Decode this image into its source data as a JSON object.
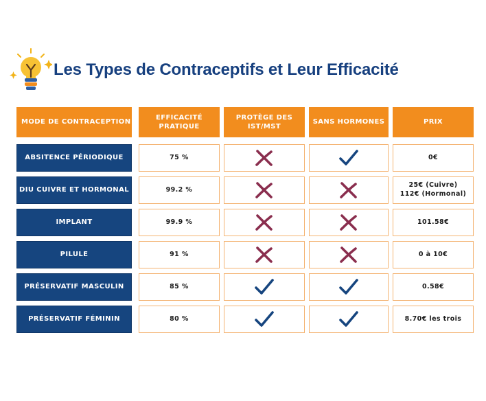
{
  "title": "Les Types de Contraceptifs et Leur Efficacité",
  "icons": {
    "title_icon": "lightbulb-icon",
    "yes": "checkmark-icon",
    "no": "cross-icon"
  },
  "colors": {
    "header_bg": "#f28d1e",
    "method_bg": "#16457f",
    "title_text": "#17407f",
    "check": "#16457f",
    "cross": "#8a2e4e",
    "cell_border": "#f4b26f"
  },
  "headers": [
    "MODE DE CONTRACEPTION",
    "EFFICACITÉ\nPRATIQUE",
    "PROTÈGE DES\nIST/MST",
    "SANS HORMONES",
    "PRIX"
  ],
  "rows": [
    {
      "method": "ABSITENCE PÉRIODIQUE",
      "efficacy": "75 %",
      "protects_sti": "no",
      "hormone_free": "yes",
      "price": "0€"
    },
    {
      "method": "DIU CUIVRE ET HORMONAL",
      "efficacy": "99.2 %",
      "protects_sti": "no",
      "hormone_free": "no",
      "price": "25€ (Cuivre)\n112€ (Hormonal)"
    },
    {
      "method": "IMPLANT",
      "efficacy": "99.9 %",
      "protects_sti": "no",
      "hormone_free": "no",
      "price": "101.58€"
    },
    {
      "method": "PILULE",
      "efficacy": "91 %",
      "protects_sti": "no",
      "hormone_free": "no",
      "price": "0 à 10€"
    },
    {
      "method": "PRÉSERVATIF MASCULIN",
      "efficacy": "85 %",
      "protects_sti": "yes",
      "hormone_free": "yes",
      "price": "0.58€"
    },
    {
      "method": "PRÉSERVATIF FÉMININ",
      "efficacy": "80 %",
      "protects_sti": "yes",
      "hormone_free": "yes",
      "price": "8.70€ les trois"
    }
  ]
}
